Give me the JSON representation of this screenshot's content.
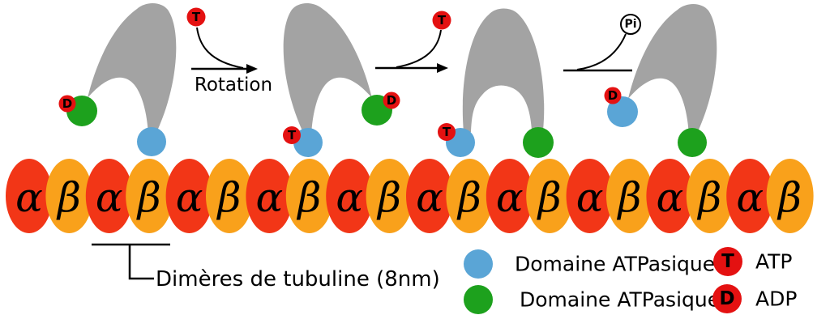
{
  "colors": {
    "alpha_tubulin": "#f23617",
    "beta_tubulin": "#f9a11b",
    "domain_blue": "#5aa5d6",
    "domain_green": "#1da11d",
    "nucleotide_red": "#e41111",
    "motor_gray": "#a3a3a3",
    "background": "#ffffff",
    "ink": "#000000"
  },
  "annotations": {
    "rotation_label": "Rotation",
    "dimer_label": "Dimères de tubuline (8nm)"
  },
  "badges": {
    "motor1_adp": "D",
    "arrow1_atp": "T",
    "motor2_atp": "T",
    "motor2_adp": "D",
    "arrow2_atp": "T",
    "motor3_atp": "T",
    "arrow3_pi": "Pi",
    "motor4_adp": "D"
  },
  "microtubule": {
    "subunits": [
      {
        "label": "α",
        "type": "alpha"
      },
      {
        "label": "β",
        "type": "beta"
      },
      {
        "label": "α",
        "type": "alpha"
      },
      {
        "label": "β",
        "type": "beta"
      },
      {
        "label": "α",
        "type": "alpha"
      },
      {
        "label": "β",
        "type": "beta"
      },
      {
        "label": "α",
        "type": "alpha"
      },
      {
        "label": "β",
        "type": "beta"
      },
      {
        "label": "α",
        "type": "alpha"
      },
      {
        "label": "β",
        "type": "beta"
      },
      {
        "label": "α",
        "type": "alpha"
      },
      {
        "label": "β",
        "type": "beta"
      },
      {
        "label": "α",
        "type": "alpha"
      },
      {
        "label": "β",
        "type": "beta"
      },
      {
        "label": "α",
        "type": "alpha"
      },
      {
        "label": "β",
        "type": "beta"
      },
      {
        "label": "α",
        "type": "alpha"
      },
      {
        "label": "β",
        "type": "beta"
      },
      {
        "label": "α",
        "type": "alpha"
      },
      {
        "label": "β",
        "type": "beta"
      }
    ]
  },
  "legend": {
    "domain_blue_label": "Domaine ATPasique",
    "domain_green_label": "Domaine ATPasique",
    "atp_badge": "T",
    "atp_label": "ATP",
    "adp_badge": "D",
    "adp_label": "ADP"
  }
}
